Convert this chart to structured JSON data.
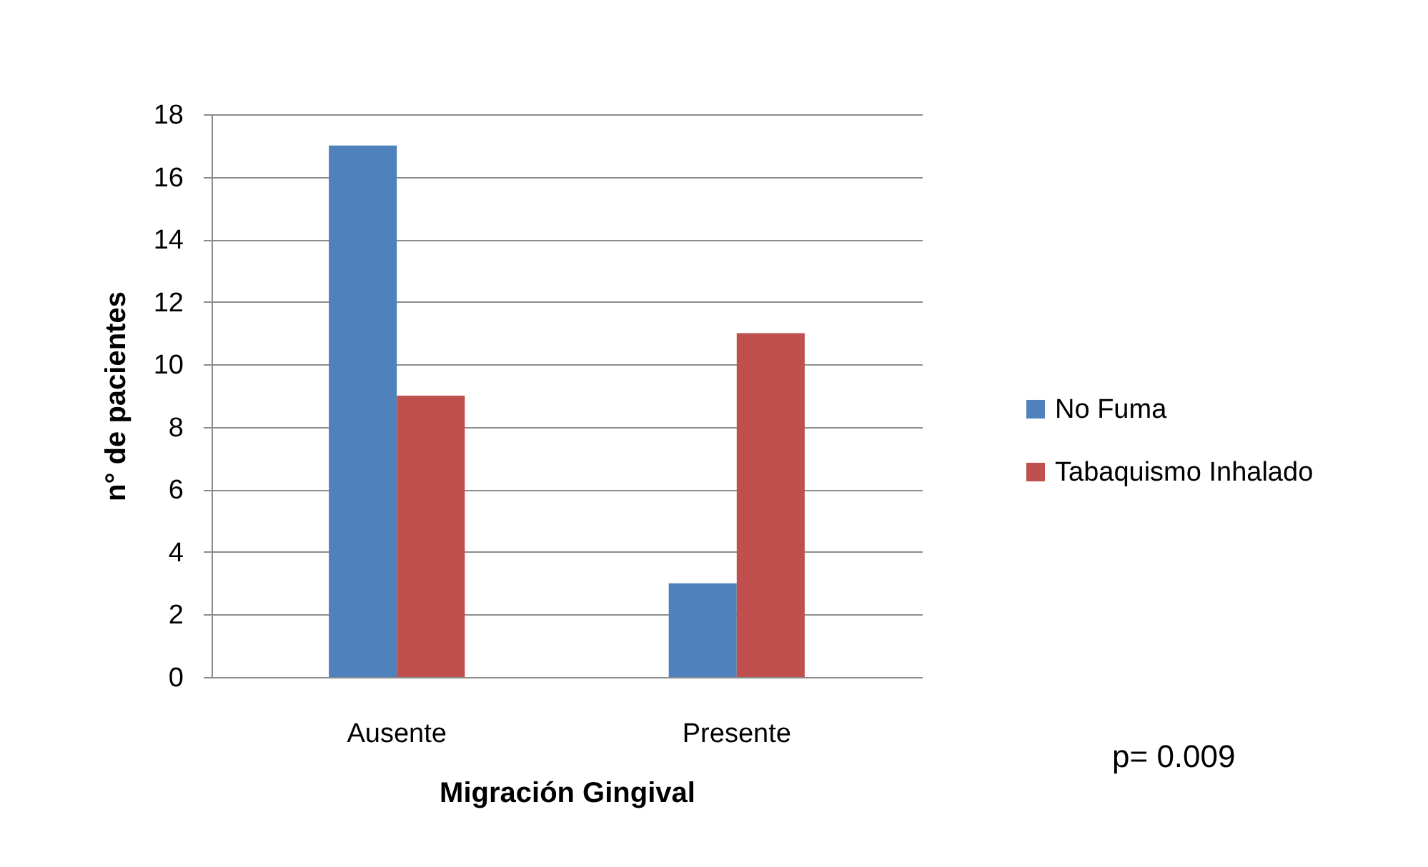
{
  "chart_data": {
    "type": "bar",
    "xlabel": "Migración Gingival",
    "ylabel": "n° de pacientes",
    "categories": [
      "Ausente",
      "Presente"
    ],
    "series": [
      {
        "name": "No Fuma",
        "color": "#4f81bd",
        "values": [
          17,
          3
        ]
      },
      {
        "name": "Tabaquismo Inhalado",
        "color": "#c0504d",
        "values": [
          9,
          11
        ]
      }
    ],
    "ylim": [
      0,
      18
    ],
    "yticks": [
      0,
      2,
      4,
      6,
      8,
      10,
      12,
      14,
      16,
      18
    ],
    "grid": "y",
    "legend": "right",
    "annotations": [
      "p= 0.009"
    ]
  }
}
